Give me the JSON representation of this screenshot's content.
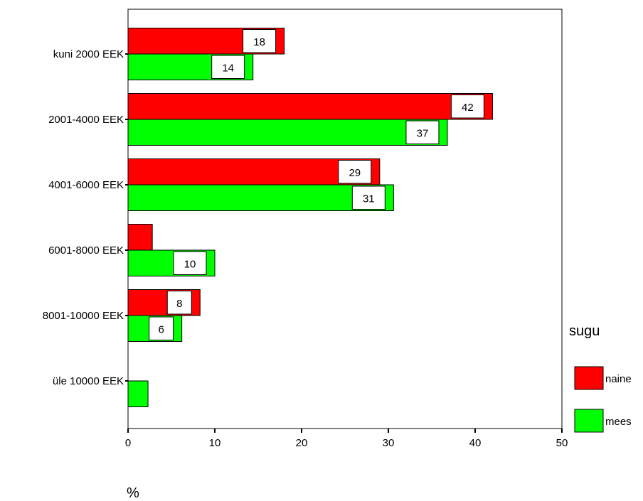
{
  "chart_data": {
    "type": "bar",
    "orientation": "horizontal",
    "categories": [
      "kuni 2000 EEK",
      "2001-4000 EEK",
      "4001-6000 EEK",
      "6001-8000 EEK",
      "8001-10000 EEK",
      "üle 10000 EEK"
    ],
    "series": [
      {
        "name": "naine",
        "color": "#ff0000",
        "values": [
          18,
          42,
          29,
          2.8,
          8.3,
          0
        ],
        "labels": [
          "18",
          "42",
          "29",
          "",
          "8",
          ""
        ]
      },
      {
        "name": "mees",
        "color": "#00ff00",
        "values": [
          14.4,
          36.8,
          30.6,
          10,
          6.2,
          2.3
        ],
        "labels": [
          "14",
          "37",
          "31",
          "10",
          "6",
          ""
        ]
      }
    ],
    "xlabel": "%",
    "xlim": [
      0,
      50
    ],
    "xticks": [
      "0",
      "10",
      "20",
      "30",
      "40",
      "50"
    ],
    "legend": {
      "title": "sugu",
      "position": "right"
    },
    "grid": false
  }
}
